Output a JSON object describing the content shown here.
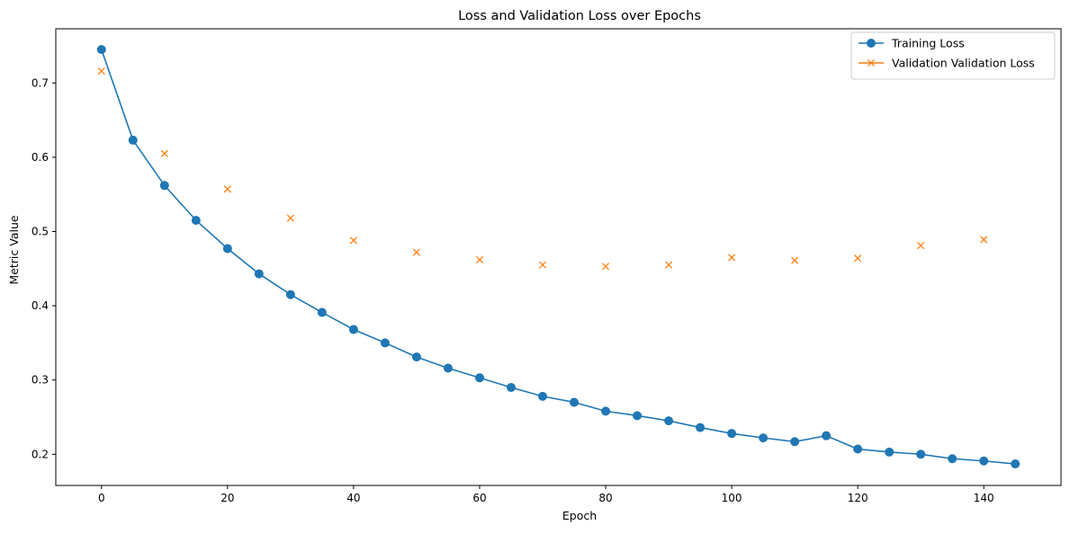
{
  "chart_data": {
    "type": "line",
    "title": "Loss and Validation Loss over Epochs",
    "xlabel": "Epoch",
    "ylabel": "Metric Value",
    "xlim": [
      -7.25,
      152.25
    ],
    "ylim": [
      0.158,
      0.773
    ],
    "x_ticks": [
      0,
      20,
      40,
      60,
      80,
      100,
      120,
      140
    ],
    "y_ticks": [
      0.2,
      0.3,
      0.4,
      0.5,
      0.6,
      0.7
    ],
    "grid": false,
    "legend_position": "top-right",
    "series": [
      {
        "name": "Training Loss",
        "color": "#1f77b4",
        "marker": "circle",
        "style": "line",
        "x": [
          0,
          5,
          10,
          15,
          20,
          25,
          30,
          35,
          40,
          45,
          50,
          55,
          60,
          65,
          70,
          75,
          80,
          85,
          90,
          95,
          100,
          105,
          110,
          115,
          120,
          125,
          130,
          135,
          140,
          145
        ],
        "y": [
          0.745,
          0.623,
          0.562,
          0.515,
          0.477,
          0.443,
          0.415,
          0.391,
          0.368,
          0.35,
          0.331,
          0.316,
          0.303,
          0.29,
          0.278,
          0.27,
          0.258,
          0.252,
          0.245,
          0.236,
          0.228,
          0.222,
          0.217,
          0.225,
          0.207,
          0.203,
          0.2,
          0.194,
          0.191,
          0.187
        ]
      },
      {
        "name": "Validation Validation Loss",
        "color": "#ff7f0e",
        "marker": "x",
        "style": "markers",
        "x": [
          0,
          10,
          20,
          30,
          40,
          50,
          60,
          70,
          80,
          90,
          100,
          110,
          120,
          130,
          140
        ],
        "y": [
          0.716,
          0.605,
          0.557,
          0.518,
          0.488,
          0.472,
          0.462,
          0.455,
          0.453,
          0.455,
          0.465,
          0.461,
          0.464,
          0.481,
          0.489
        ]
      }
    ]
  }
}
